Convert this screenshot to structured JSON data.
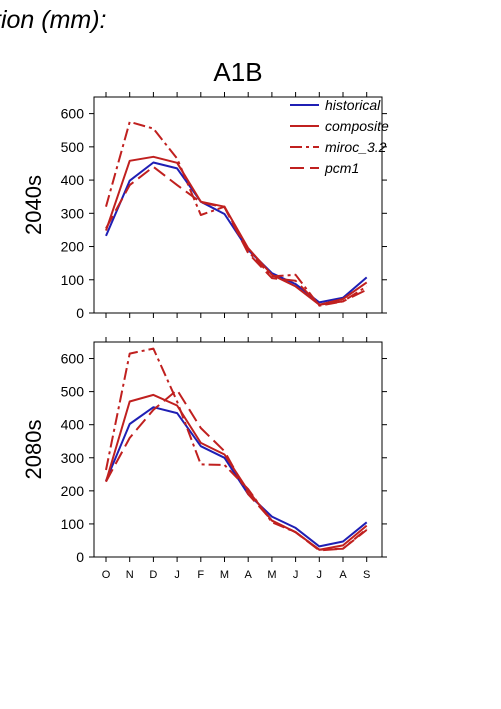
{
  "header_text": "tion (mm):",
  "scenario_title": "A1B",
  "chart_data": [
    {
      "type": "line",
      "ylabel": "2040s",
      "ylim": [
        0,
        650
      ],
      "yticks": [
        0,
        100,
        200,
        300,
        400,
        500,
        600
      ],
      "categories": [
        "O",
        "N",
        "D",
        "J",
        "F",
        "M",
        "A",
        "M",
        "J",
        "J",
        "A",
        "S"
      ],
      "legend_position": "top-right",
      "series": [
        {
          "name": "historical",
          "color": "#1f1fb4",
          "dash": "solid",
          "values": [
            232,
            398,
            453,
            435,
            335,
            298,
            190,
            120,
            87,
            32,
            46,
            107
          ]
        },
        {
          "name": "composite",
          "color": "#c0201f",
          "dash": "solid",
          "values": [
            248,
            458,
            470,
            452,
            335,
            320,
            195,
            115,
            80,
            25,
            42,
            92
          ]
        },
        {
          "name": "miroc_3.2",
          "color": "#c0201f",
          "dash": "dashdot",
          "values": [
            320,
            575,
            555,
            465,
            295,
            320,
            185,
            110,
            115,
            22,
            35,
            80
          ]
        },
        {
          "name": "pcm1",
          "color": "#c0201f",
          "dash": "dashed",
          "values": [
            255,
            385,
            440,
            385,
            333,
            318,
            180,
            105,
            97,
            25,
            35,
            70
          ]
        }
      ]
    },
    {
      "type": "line",
      "ylabel": "2080s",
      "ylim": [
        0,
        650
      ],
      "yticks": [
        0,
        100,
        200,
        300,
        400,
        500,
        600
      ],
      "categories": [
        "O",
        "N",
        "D",
        "J",
        "F",
        "M",
        "A",
        "M",
        "J",
        "J",
        "A",
        "S"
      ],
      "series": [
        {
          "name": "historical",
          "color": "#1f1fb4",
          "dash": "solid",
          "values": [
            230,
            402,
            453,
            435,
            335,
            300,
            190,
            122,
            88,
            32,
            47,
            105
          ]
        },
        {
          "name": "composite",
          "color": "#c0201f",
          "dash": "solid",
          "values": [
            228,
            470,
            490,
            458,
            345,
            310,
            200,
            110,
            75,
            22,
            35,
            95
          ]
        },
        {
          "name": "miroc_3.2",
          "color": "#c0201f",
          "dash": "dashdot",
          "values": [
            263,
            615,
            630,
            470,
            280,
            278,
            205,
            105,
            75,
            22,
            25,
            85
          ]
        },
        {
          "name": "pcm1",
          "color": "#c0201f",
          "dash": "dashed",
          "values": [
            228,
            360,
            445,
            505,
            390,
            320,
            190,
            110,
            75,
            20,
            25,
            82
          ]
        }
      ]
    }
  ]
}
